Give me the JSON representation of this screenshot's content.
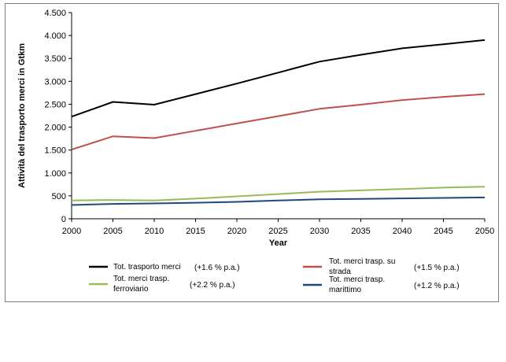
{
  "chart_data": {
    "type": "line",
    "title": "",
    "xlabel": "Year",
    "ylabel": "Attività del trasporto merci  in Gtkm",
    "x": [
      2000,
      2005,
      2010,
      2015,
      2020,
      2025,
      2030,
      2035,
      2040,
      2045,
      2050
    ],
    "x_tick_labels": [
      "2000",
      "2005",
      "2010",
      "2015",
      "2020",
      "2025",
      "2030",
      "2035",
      "2040",
      "2045",
      "2050"
    ],
    "ylim": [
      0,
      4500
    ],
    "y_ticks": [
      0,
      500,
      1000,
      1500,
      2000,
      2500,
      3000,
      3500,
      4000,
      4500
    ],
    "y_tick_labels": [
      "0",
      "500",
      "1.000",
      "1.500",
      "2.000",
      "2.500",
      "3.000",
      "3.500",
      "4.000",
      "4.500"
    ],
    "grid": false,
    "legend_position": "bottom",
    "series": [
      {
        "name": "Tot. trasporto merci",
        "growth": "(+1.6 % p.a.)",
        "color": "#000000",
        "values": [
          2230,
          2550,
          2490,
          2720,
          2950,
          3190,
          3430,
          3580,
          3720,
          3810,
          3900
        ]
      },
      {
        "name": "Tot. merci trasp. su strada",
        "growth": "(+1.5 % p.a.)",
        "color": "#c0504d",
        "values": [
          1510,
          1800,
          1760,
          1920,
          2080,
          2240,
          2400,
          2490,
          2590,
          2660,
          2720
        ]
      },
      {
        "name": "Tot. merci trasp. ferroviario",
        "growth": "(+2.2 % p.a.)",
        "color": "#9bbb59",
        "values": [
          400,
          410,
          400,
          440,
          490,
          540,
          590,
          620,
          650,
          680,
          700
        ]
      },
      {
        "name": "Tot. merci trasp. marittimo",
        "growth": "(+1.2 % p.a.)",
        "color": "#1f497d",
        "values": [
          300,
          325,
          335,
          350,
          370,
          400,
          425,
          435,
          445,
          455,
          465
        ]
      }
    ]
  }
}
